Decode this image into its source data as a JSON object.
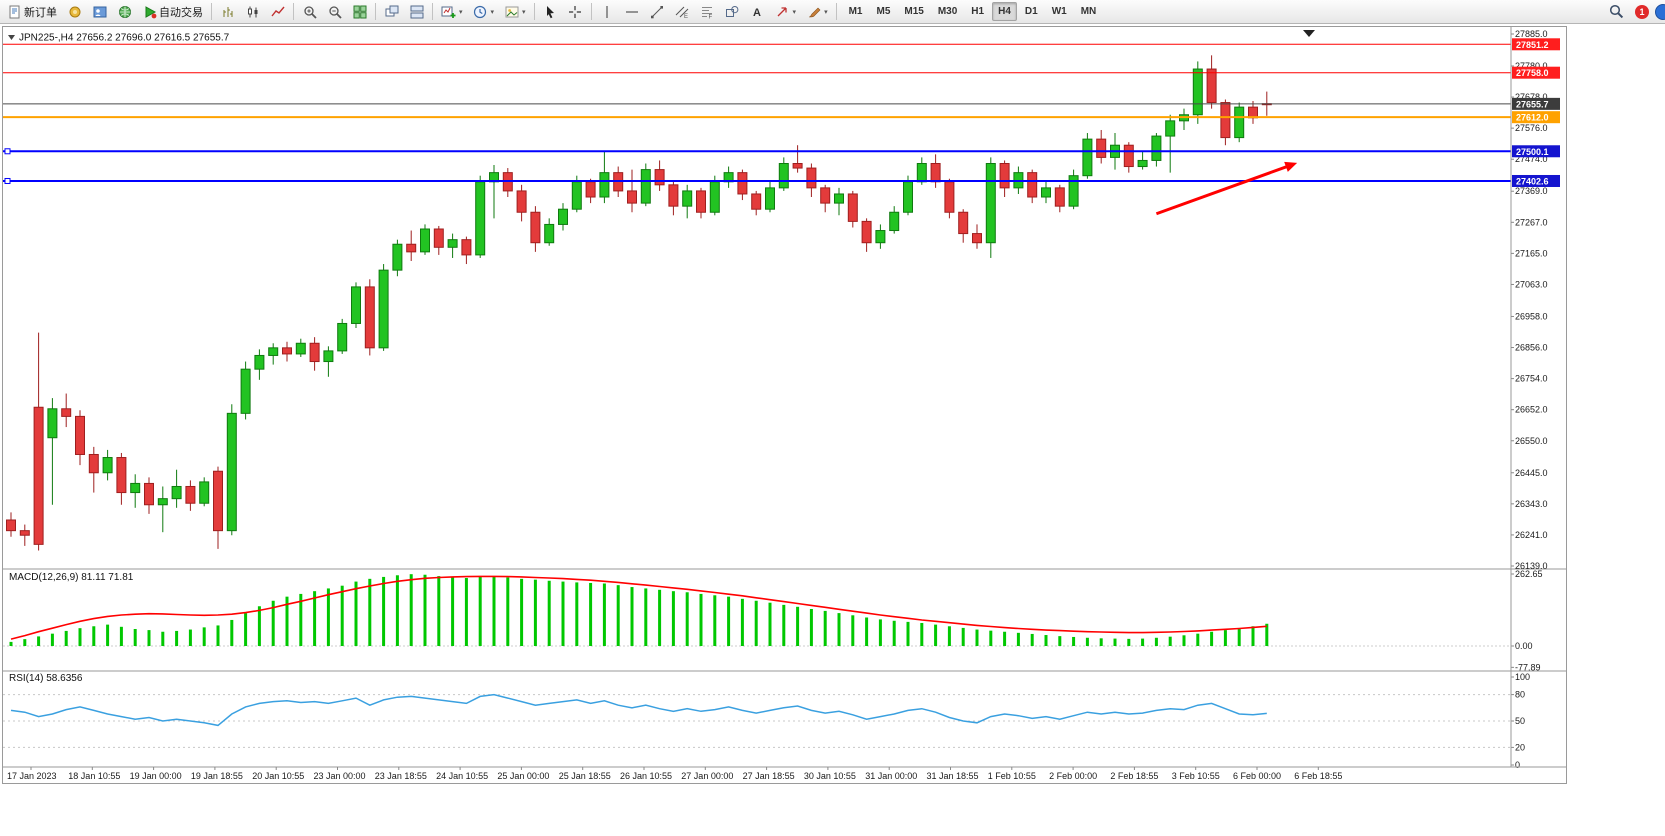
{
  "toolbar": {
    "notification_count": "1",
    "active_timeframe": "H4",
    "timeframes": [
      "M1",
      "M5",
      "M15",
      "M30",
      "H1",
      "H4",
      "D1",
      "W1",
      "MN"
    ],
    "items": [
      {
        "kind": "button",
        "name": "new-order-button",
        "icon": "new-order-icon",
        "label": "新订单"
      },
      {
        "kind": "button",
        "name": "favorites-button",
        "icon": "gold-star-icon"
      },
      {
        "kind": "button",
        "name": "profile-button",
        "icon": "profile-icon"
      },
      {
        "kind": "button",
        "name": "tester-button",
        "icon": "tester-icon"
      },
      {
        "kind": "button",
        "name": "autotrading-button",
        "icon": "autotrade-icon",
        "label": "自动交易"
      },
      {
        "kind": "sep"
      },
      {
        "kind": "button",
        "name": "bar-chart-button",
        "icon": "bar-chart-icon"
      },
      {
        "kind": "button",
        "name": "candlestick-chart-button",
        "icon": "candlestick-icon"
      },
      {
        "kind": "button",
        "name": "line-chart-button",
        "icon": "line-chart-icon"
      },
      {
        "kind": "sep"
      },
      {
        "kind": "button",
        "name": "zoom-in-button",
        "icon": "zoom-in-icon"
      },
      {
        "kind": "button",
        "name": "zoom-out-button",
        "icon": "zoom-out-icon"
      },
      {
        "kind": "button",
        "name": "tile-windows-button",
        "icon": "tile-icon"
      },
      {
        "kind": "sep"
      },
      {
        "kind": "button",
        "name": "cascade-windows-button",
        "icon": "cascade-icon"
      },
      {
        "kind": "button",
        "name": "tile-horizontal-button",
        "icon": "tile2-icon"
      },
      {
        "kind": "sep"
      },
      {
        "kind": "button",
        "name": "new-chart-button",
        "icon": "new-chart-icon",
        "dropdown": true
      },
      {
        "kind": "button",
        "name": "periods-button",
        "icon": "clock-icon",
        "dropdown": true
      },
      {
        "kind": "button",
        "name": "templates-button",
        "icon": "template-icon",
        "dropdown": true
      },
      {
        "kind": "sep"
      },
      {
        "kind": "button",
        "name": "cursor-button",
        "icon": "cursor-icon"
      },
      {
        "kind": "button",
        "name": "crosshair-button",
        "icon": "crosshair-icon"
      },
      {
        "kind": "sep"
      },
      {
        "kind": "button",
        "name": "vertical-line-button",
        "icon": "vline-icon"
      },
      {
        "kind": "button",
        "name": "horizontal-line-button",
        "icon": "hline-icon"
      },
      {
        "kind": "button",
        "name": "trendline-button",
        "icon": "trendline-icon"
      },
      {
        "kind": "button",
        "name": "equidistant-channel-button",
        "icon": "channel-icon"
      },
      {
        "kind": "button",
        "name": "fibonacci-button",
        "icon": "fibonacci-icon"
      },
      {
        "kind": "button",
        "name": "shapes-button",
        "icon": "shapes-icon"
      },
      {
        "kind": "button",
        "name": "text-button",
        "icon": "text-icon"
      },
      {
        "kind": "button",
        "name": "arrows-tool-button",
        "icon": "arrow-tool-icon",
        "dropdown": true
      },
      {
        "kind": "button",
        "name": "drawing-tools-button",
        "icon": "paint-icon",
        "dropdown": true
      },
      {
        "kind": "sep"
      }
    ]
  },
  "chart": {
    "symbol_label": "JPN225-,H4",
    "ohlc": {
      "open": "27656.2",
      "high": "27696.0",
      "low": "27616.5",
      "close": "27655.7"
    }
  },
  "chart_data": [
    {
      "type": "candlestick",
      "symbol": "JPN225-",
      "timeframe": "H4",
      "title": "JPN225-,H4 27656.2 27696.0 27616.5 27655.7",
      "ylim": [
        26139.0,
        27885.0
      ],
      "y_ticks": [
        27885.0,
        27780.0,
        27678.0,
        27576.0,
        27474.0,
        27369.0,
        27267.0,
        27165.0,
        27063.0,
        26958.0,
        26856.0,
        26754.0,
        26652.0,
        26550.0,
        26445.0,
        26343.0,
        26241.0,
        26139.0
      ],
      "x_labels": [
        "17 Jan 2023",
        "18 Jan 10:55",
        "19 Jan 00:00",
        "19 Jan 18:55",
        "20 Jan 10:55",
        "23 Jan 00:00",
        "23 Jan 18:55",
        "24 Jan 10:55",
        "25 Jan 00:00",
        "25 Jan 18:55",
        "26 Jan 10:55",
        "27 Jan 00:00",
        "27 Jan 18:55",
        "30 Jan 10:55",
        "31 Jan 00:00",
        "31 Jan 18:55",
        "1 Feb 10:55",
        "2 Feb 00:00",
        "2 Feb 18:55",
        "3 Feb 10:55",
        "6 Feb 00:00",
        "6 Feb 18:55"
      ],
      "colors": {
        "up": "#22c322",
        "up_edge": "#0f7a0f",
        "down": "#e33b3b",
        "down_edge": "#9e1f1f"
      },
      "candles_ohlc": [
        [
          26290,
          26315,
          26235,
          26255
        ],
        [
          26255,
          26275,
          26205,
          26240
        ],
        [
          26660,
          26905,
          26190,
          26210
        ],
        [
          26560,
          26690,
          26340,
          26655
        ],
        [
          26655,
          26705,
          26595,
          26630
        ],
        [
          26630,
          26650,
          26470,
          26505
        ],
        [
          26505,
          26530,
          26380,
          26445
        ],
        [
          26445,
          26520,
          26420,
          26495
        ],
        [
          26495,
          26510,
          26340,
          26380
        ],
        [
          26380,
          26440,
          26330,
          26410
        ],
        [
          26410,
          26430,
          26310,
          26340
        ],
        [
          26340,
          26400,
          26250,
          26360
        ],
        [
          26360,
          26455,
          26330,
          26400
        ],
        [
          26400,
          26420,
          26320,
          26345
        ],
        [
          26345,
          26430,
          26335,
          26415
        ],
        [
          26450,
          26465,
          26195,
          26255
        ],
        [
          26255,
          26670,
          26240,
          26640
        ],
        [
          26640,
          26810,
          26620,
          26785
        ],
        [
          26785,
          26850,
          26750,
          26830
        ],
        [
          26830,
          26870,
          26800,
          26855
        ],
        [
          26855,
          26875,
          26810,
          26835
        ],
        [
          26835,
          26885,
          26825,
          26870
        ],
        [
          26870,
          26890,
          26780,
          26810
        ],
        [
          26810,
          26860,
          26760,
          26845
        ],
        [
          26845,
          26950,
          26835,
          26935
        ],
        [
          26935,
          27070,
          26920,
          27055
        ],
        [
          27055,
          27080,
          26830,
          26855
        ],
        [
          26855,
          27130,
          26845,
          27110
        ],
        [
          27110,
          27210,
          27090,
          27195
        ],
        [
          27195,
          27240,
          27140,
          27170
        ],
        [
          27170,
          27260,
          27160,
          27245
        ],
        [
          27245,
          27255,
          27160,
          27185
        ],
        [
          27185,
          27230,
          27150,
          27210
        ],
        [
          27210,
          27220,
          27130,
          27160
        ],
        [
          27160,
          27420,
          27150,
          27400
        ],
        [
          27400,
          27455,
          27280,
          27430
        ],
        [
          27430,
          27445,
          27350,
          27370
        ],
        [
          27370,
          27390,
          27270,
          27300
        ],
        [
          27300,
          27320,
          27170,
          27200
        ],
        [
          27200,
          27280,
          27190,
          27260
        ],
        [
          27260,
          27330,
          27240,
          27310
        ],
        [
          27310,
          27420,
          27300,
          27400
        ],
        [
          27400,
          27410,
          27330,
          27350
        ],
        [
          27350,
          27500,
          27330,
          27430
        ],
        [
          27430,
          27450,
          27350,
          27370
        ],
        [
          27370,
          27440,
          27300,
          27330
        ],
        [
          27330,
          27460,
          27320,
          27440
        ],
        [
          27440,
          27470,
          27370,
          27390
        ],
        [
          27390,
          27400,
          27290,
          27320
        ],
        [
          27320,
          27390,
          27280,
          27370
        ],
        [
          27370,
          27380,
          27280,
          27300
        ],
        [
          27300,
          27420,
          27290,
          27400
        ],
        [
          27400,
          27450,
          27380,
          27430
        ],
        [
          27430,
          27440,
          27340,
          27360
        ],
        [
          27360,
          27370,
          27290,
          27310
        ],
        [
          27310,
          27400,
          27300,
          27380
        ],
        [
          27380,
          27480,
          27370,
          27460
        ],
        [
          27460,
          27520,
          27430,
          27445
        ],
        [
          27445,
          27460,
          27350,
          27380
        ],
        [
          27380,
          27390,
          27300,
          27330
        ],
        [
          27330,
          27380,
          27290,
          27360
        ],
        [
          27360,
          27370,
          27250,
          27270
        ],
        [
          27270,
          27280,
          27170,
          27200
        ],
        [
          27200,
          27260,
          27180,
          27240
        ],
        [
          27240,
          27320,
          27230,
          27300
        ],
        [
          27300,
          27420,
          27290,
          27400
        ],
        [
          27400,
          27480,
          27390,
          27460
        ],
        [
          27460,
          27490,
          27380,
          27400
        ],
        [
          27400,
          27410,
          27280,
          27300
        ],
        [
          27300,
          27310,
          27200,
          27230
        ],
        [
          27230,
          27260,
          27180,
          27200
        ],
        [
          27200,
          27480,
          27150,
          27460
        ],
        [
          27460,
          27470,
          27350,
          27380
        ],
        [
          27380,
          27450,
          27360,
          27430
        ],
        [
          27430,
          27440,
          27330,
          27350
        ],
        [
          27350,
          27400,
          27330,
          27380
        ],
        [
          27380,
          27390,
          27300,
          27320
        ],
        [
          27320,
          27440,
          27310,
          27420
        ],
        [
          27420,
          27560,
          27410,
          27540
        ],
        [
          27540,
          27570,
          27460,
          27480
        ],
        [
          27480,
          27560,
          27440,
          27520
        ],
        [
          27520,
          27530,
          27430,
          27450
        ],
        [
          27450,
          27500,
          27440,
          27470
        ],
        [
          27470,
          27560,
          27450,
          27550
        ],
        [
          27550,
          27620,
          27430,
          27600
        ],
        [
          27600,
          27640,
          27570,
          27620
        ],
        [
          27620,
          27795,
          27590,
          27770
        ],
        [
          27770,
          27815,
          27640,
          27660
        ],
        [
          27660,
          27670,
          27520,
          27545
        ],
        [
          27545,
          27660,
          27530,
          27645
        ],
        [
          27645,
          27665,
          27590,
          27610
        ],
        [
          27656.2,
          27696.0,
          27616.5,
          27655.7
        ]
      ],
      "hlines": [
        {
          "price": 27851.2,
          "color": "#ff0000",
          "width": 1
        },
        {
          "price": 27758.0,
          "color": "#ff0000",
          "width": 1
        },
        {
          "price": 27655.7,
          "color": "#4a4a4a",
          "width": 1,
          "role": "current-price"
        },
        {
          "price": 27612.0,
          "color": "#ffa200",
          "width": 2
        },
        {
          "price": 27500.1,
          "color": "#0000ff",
          "width": 2
        },
        {
          "price": 27402.6,
          "color": "#0000ff",
          "width": 2
        }
      ],
      "price_badges": [
        {
          "text": "27851.2",
          "bg": "#ff1e1e"
        },
        {
          "text": "27758.0",
          "bg": "#ff1e1e"
        },
        {
          "text": "27655.7",
          "bg": "#3c3c3c"
        },
        {
          "text": "27612.0",
          "bg": "#ffa200"
        },
        {
          "text": "27500.1",
          "bg": "#1414cf"
        },
        {
          "text": "27402.6",
          "bg": "#1414cf"
        }
      ],
      "annotations": [
        {
          "type": "arrow",
          "color": "#ff0000",
          "from": {
            "bar": 83,
            "price": 27295
          },
          "to": {
            "bar": 93.2,
            "price": 27462
          }
        }
      ]
    },
    {
      "type": "bar",
      "name": "MACD",
      "label": "MACD(12,26,9) 81.11 71.81",
      "params": "12,26,9",
      "current_values": [
        81.11,
        71.81
      ],
      "y_ticks": [
        262.65,
        0.0,
        -77.89
      ],
      "colors": {
        "histogram": "#00c800",
        "signal": "#ff0000"
      },
      "histogram": [
        15,
        25,
        35,
        45,
        55,
        65,
        72,
        78,
        70,
        62,
        58,
        52,
        55,
        60,
        68,
        75,
        95,
        120,
        145,
        165,
        180,
        190,
        200,
        210,
        220,
        235,
        245,
        252,
        258,
        262,
        260,
        255,
        250,
        248,
        252,
        255,
        250,
        245,
        242,
        238,
        235,
        232,
        230,
        228,
        222,
        215,
        210,
        205,
        200,
        196,
        190,
        185,
        180,
        172,
        165,
        158,
        150,
        143,
        135,
        128,
        120,
        112,
        104,
        97,
        92,
        88,
        84,
        78,
        72,
        66,
        60,
        56,
        52,
        48,
        44,
        40,
        36,
        33,
        30,
        28,
        27,
        26,
        27,
        30,
        34,
        39,
        45,
        52,
        58,
        64,
        72,
        81.11
      ],
      "signal": [
        25,
        38,
        52,
        65,
        78,
        90,
        100,
        108,
        113,
        116,
        118,
        117,
        115,
        113,
        112,
        113,
        116,
        122,
        130,
        140,
        152,
        163,
        175,
        187,
        198,
        209,
        219,
        228,
        236,
        242,
        247,
        250,
        252,
        253,
        254,
        254,
        253,
        252,
        250,
        248,
        246,
        243,
        240,
        236,
        232,
        227,
        222,
        217,
        212,
        207,
        201,
        195,
        189,
        183,
        176,
        169,
        162,
        155,
        148,
        141,
        134,
        127,
        120,
        113,
        107,
        101,
        95,
        90,
        85,
        80,
        75,
        71,
        67,
        64,
        61,
        58,
        56,
        54,
        52,
        51,
        50,
        49,
        49,
        50,
        51,
        53,
        55,
        58,
        61,
        64,
        68,
        71.81
      ]
    },
    {
      "type": "line",
      "name": "RSI",
      "label": "RSI(14) 58.6356",
      "period": 14,
      "current": 58.6356,
      "y_ticks": [
        100,
        80,
        50,
        20,
        0
      ],
      "levels": [
        80,
        50,
        20
      ],
      "color": "#3aa0e0",
      "values": [
        62,
        60,
        55,
        58,
        63,
        66,
        62,
        58,
        55,
        52,
        54,
        50,
        52,
        50,
        48,
        45,
        58,
        66,
        70,
        72,
        73,
        71,
        72,
        70,
        73,
        76,
        68,
        74,
        77,
        78,
        76,
        74,
        72,
        70,
        78,
        80,
        76,
        72,
        68,
        70,
        72,
        74,
        70,
        73,
        68,
        65,
        68,
        64,
        61,
        64,
        61,
        63,
        66,
        62,
        59,
        62,
        65,
        67,
        62,
        59,
        61,
        57,
        52,
        55,
        58,
        62,
        64,
        60,
        54,
        50,
        48,
        55,
        58,
        56,
        53,
        55,
        52,
        56,
        60,
        58,
        60,
        58,
        59,
        62,
        64,
        63,
        68,
        70,
        64,
        58,
        57,
        58.6
      ]
    }
  ]
}
